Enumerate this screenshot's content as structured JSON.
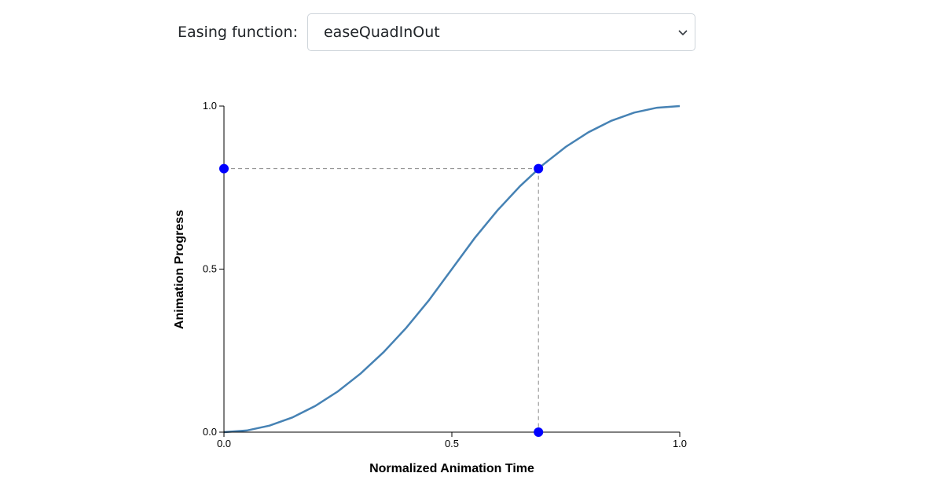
{
  "control": {
    "label": "Easing function:",
    "selected": "easeQuadInOut",
    "chevron_icon": "chevron-down-icon"
  },
  "chart_data": {
    "type": "line",
    "xlabel": "Normalized Animation Time",
    "ylabel": "Animation Progress",
    "xlim": [
      0,
      1
    ],
    "ylim": [
      0,
      1
    ],
    "x_ticks": [
      {
        "value": 0,
        "label": "0.0"
      },
      {
        "value": 0.5,
        "label": "0.5"
      },
      {
        "value": 1,
        "label": "1.0"
      }
    ],
    "y_ticks": [
      {
        "value": 0,
        "label": "0.0"
      },
      {
        "value": 0.5,
        "label": "0.5"
      },
      {
        "value": 1,
        "label": "1.0"
      }
    ],
    "series": [
      {
        "function": "easeQuadInOut",
        "color": "#4682b4",
        "x": [
          0,
          0.05,
          0.1,
          0.15,
          0.2,
          0.25,
          0.3,
          0.35,
          0.4,
          0.45,
          0.5,
          0.55,
          0.6,
          0.65,
          0.7,
          0.75,
          0.8,
          0.85,
          0.9,
          0.95,
          1
        ],
        "y": [
          0,
          0.005,
          0.02,
          0.045,
          0.08,
          0.125,
          0.18,
          0.245,
          0.32,
          0.405,
          0.5,
          0.595,
          0.68,
          0.755,
          0.82,
          0.875,
          0.92,
          0.955,
          0.98,
          0.995,
          1
        ]
      }
    ],
    "marker": {
      "t": 0.69,
      "progress": 0.808,
      "color": "#0000ff"
    },
    "grid": false
  }
}
